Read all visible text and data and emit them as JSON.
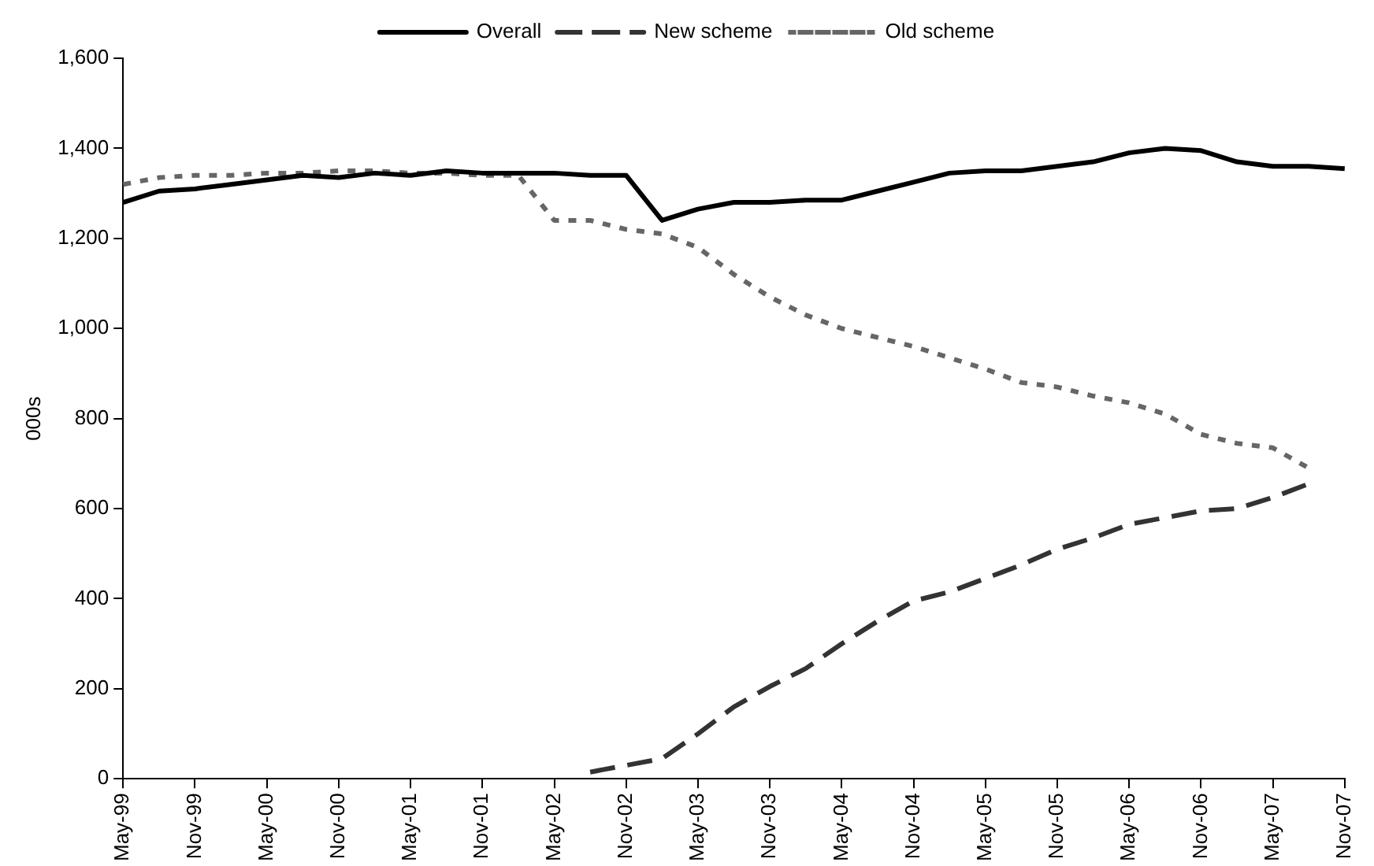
{
  "chart_data": {
    "type": "line",
    "ylabel": "000s",
    "categories": [
      "May-99",
      null,
      "Nov-99",
      null,
      "May-00",
      null,
      "Nov-00",
      null,
      "May-01",
      null,
      "Nov-01",
      null,
      "May-02",
      null,
      "Nov-02",
      null,
      "May-03",
      null,
      "Nov-03",
      null,
      "May-04",
      null,
      "Nov-04",
      null,
      "May-05",
      null,
      "Nov-05",
      null,
      "May-06",
      null,
      "Nov-06",
      null,
      "May-07",
      null,
      "Nov-07"
    ],
    "series": [
      {
        "name": "Overall",
        "color": "#000000",
        "line_style": "solid",
        "values": [
          1280,
          1305,
          1310,
          1320,
          1330,
          1340,
          1335,
          1345,
          1340,
          1350,
          1345,
          1345,
          1345,
          1340,
          1340,
          1240,
          1265,
          1280,
          1280,
          1285,
          1285,
          1305,
          1325,
          1345,
          1350,
          1350,
          1360,
          1370,
          1390,
          1400,
          1395,
          1370,
          1360,
          1360,
          1355
        ]
      },
      {
        "name": "New scheme",
        "color": "#333333",
        "line_style": "dashed",
        "values": [
          null,
          null,
          null,
          null,
          null,
          null,
          null,
          null,
          null,
          null,
          null,
          null,
          null,
          15,
          30,
          45,
          100,
          160,
          205,
          245,
          300,
          350,
          395,
          415,
          445,
          475,
          510,
          535,
          565,
          580,
          595,
          600,
          625,
          655,
          null
        ]
      },
      {
        "name": "Old scheme",
        "color": "#666666",
        "line_style": "dotted",
        "values": [
          1320,
          1335,
          1340,
          1340,
          1345,
          1345,
          1350,
          1350,
          1345,
          1345,
          1340,
          1340,
          1240,
          1240,
          1220,
          1210,
          1180,
          1120,
          1070,
          1030,
          1000,
          980,
          960,
          935,
          910,
          880,
          870,
          850,
          835,
          810,
          765,
          745,
          735,
          690,
          null
        ]
      }
    ],
    "ylim": [
      0,
      1600
    ],
    "yticks": [
      0,
      200,
      400,
      600,
      800,
      {
        "value": 1000,
        "label": "1,000"
      },
      {
        "value": 1200,
        "label": "1,200"
      },
      {
        "value": 1400,
        "label": "1,400"
      },
      {
        "value": 1600,
        "label": "1,600"
      }
    ],
    "grid": false,
    "legend": "top",
    "marker": "none"
  }
}
